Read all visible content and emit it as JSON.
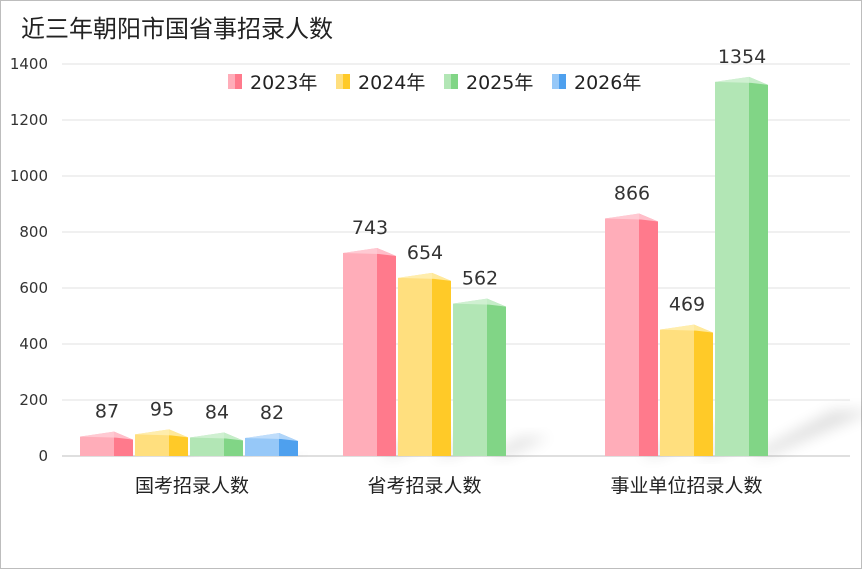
{
  "chart_data": {
    "type": "bar",
    "title": "近三年朝阳市国省事招录人数",
    "categories": [
      "国考招录人数",
      "省考招录人数",
      "事业单位招录人数"
    ],
    "series": [
      {
        "name": "2023年",
        "values": [
          87,
          743,
          866
        ]
      },
      {
        "name": "2024年",
        "values": [
          95,
          654,
          469
        ]
      },
      {
        "name": "2025年",
        "values": [
          84,
          562,
          1354
        ]
      },
      {
        "name": "2026年",
        "values": [
          82,
          null,
          null
        ]
      }
    ],
    "ylim": [
      0,
      1400
    ],
    "yticks": [
      0,
      200,
      400,
      600,
      800,
      1000,
      1200,
      1400
    ],
    "grid": true,
    "legend_position": "top",
    "colors": [
      {
        "front": "#ffadb9",
        "side": "#ff7a8c",
        "top": "#ffd0d8"
      },
      {
        "front": "#ffdf7e",
        "side": "#ffca28",
        "top": "#fff0b8"
      },
      {
        "front": "#b2e6b5",
        "side": "#81d586",
        "top": "#d6f3d8"
      },
      {
        "front": "#96c8f8",
        "side": "#4ea0ee",
        "top": "#c9e2fb"
      }
    ]
  }
}
